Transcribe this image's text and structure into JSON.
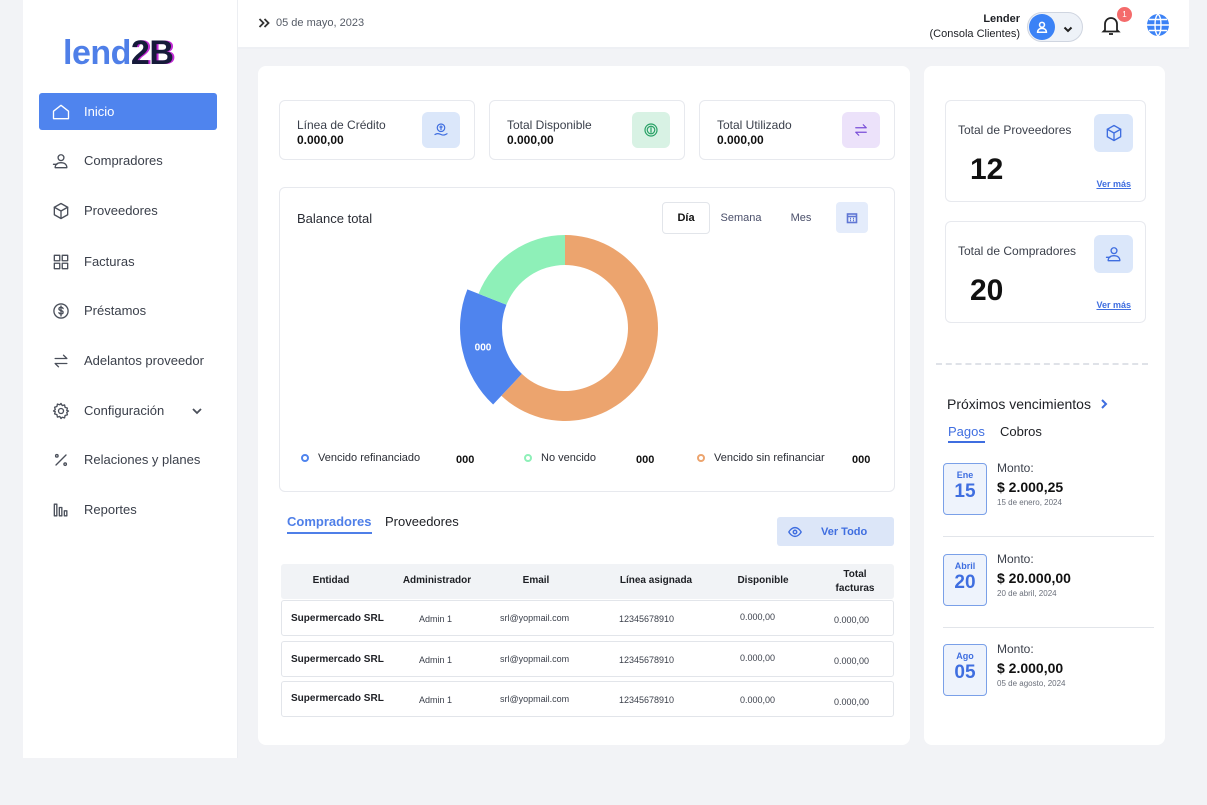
{
  "brand": {
    "part1": "lend",
    "part2": "2B"
  },
  "sidebar": {
    "items": [
      {
        "label": "Inicio",
        "icon": "home-icon"
      },
      {
        "label": "Compradores",
        "icon": "buyers-icon"
      },
      {
        "label": "Proveedores",
        "icon": "box-icon"
      },
      {
        "label": "Facturas",
        "icon": "grid-icon"
      },
      {
        "label": "Préstamos",
        "icon": "dollar-icon"
      },
      {
        "label": "Adelantos proveedor",
        "icon": "swap-icon"
      },
      {
        "label": "Configuración",
        "icon": "gear-icon"
      },
      {
        "label": "Relaciones y planes",
        "icon": "percent-icon"
      },
      {
        "label": "Reportes",
        "icon": "bars-icon"
      }
    ]
  },
  "header": {
    "date": "05 de mayo, 2023",
    "user_name": "Lender",
    "user_role": "(Consola Clientes)",
    "notifications": "1"
  },
  "stats": [
    {
      "label": "Línea de Crédito",
      "value": "0.000,00"
    },
    {
      "label": "Total Disponible",
      "value": "0.000,00"
    },
    {
      "label": "Total Utilizado",
      "value": "0.000,00"
    }
  ],
  "balance": {
    "title": "Balance total",
    "periods": [
      "Día",
      "Semana",
      "Mes"
    ],
    "selected_period": "Día",
    "legend": [
      {
        "label": "Vencido refinanciado",
        "value": "000",
        "color": "#4f84ee"
      },
      {
        "label": "No vencido",
        "value": "000",
        "color": "#8ef0b8"
      },
      {
        "label": "Vencido sin refinanciar",
        "value": "000",
        "color": "#eca46e"
      }
    ]
  },
  "chart_data": {
    "type": "pie",
    "categories": [
      "Vencido sin refinanciar",
      "Vencido refinanciado",
      "No vencido"
    ],
    "values": [
      62,
      19,
      19
    ],
    "data_labels": [
      "",
      "000",
      ""
    ],
    "colors": [
      "#eca46e",
      "#4f84ee",
      "#8ef0b8"
    ]
  },
  "tabs": {
    "items": [
      "Compradores",
      "Proveedores"
    ],
    "selected": "Compradores",
    "view_all": "Ver Todo"
  },
  "table": {
    "headers": [
      "Entidad",
      "Administrador",
      "Email",
      "Línea asignada",
      "Disponible",
      "Total facturas"
    ],
    "rows": [
      [
        "Supermercado SRL",
        "Admin 1",
        "srl@yopmail.com",
        "12345678910",
        "0.000,00",
        "0.000,00"
      ],
      [
        "Supermercado SRL",
        "Admin 1",
        "srl@yopmail.com",
        "12345678910",
        "0.000,00",
        "0.000,00"
      ],
      [
        "Supermercado SRL",
        "Admin 1",
        "srl@yopmail.com",
        "12345678910",
        "0.000,00",
        "0.000,00"
      ]
    ]
  },
  "summary": [
    {
      "label": "Total de Proveedores",
      "value": "12",
      "more": "Ver más"
    },
    {
      "label": "Total de Compradores",
      "value": "20",
      "more": "Ver más"
    }
  ],
  "vencimientos": {
    "title": "Próximos vencimientos",
    "tabs": [
      "Pagos",
      "Cobros"
    ],
    "amount_label": "Monto:",
    "items": [
      {
        "month": "Ene",
        "day": "15",
        "amount": "$ 2.000,25",
        "date": "15 de enero, 2024"
      },
      {
        "month": "Abril",
        "day": "20",
        "amount": "$ 20.000,00",
        "date": "20 de abril, 2024"
      },
      {
        "month": "Ago",
        "day": "05",
        "amount": "$ 2.000,00",
        "date": "05 de agosto, 2024"
      }
    ]
  }
}
